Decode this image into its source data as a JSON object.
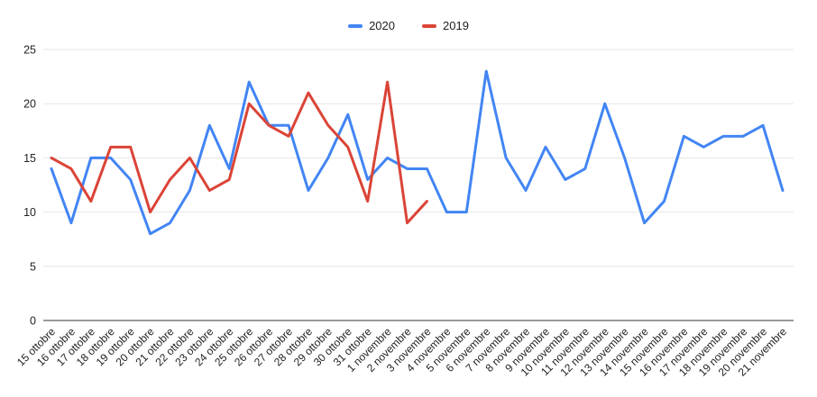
{
  "legend": {
    "items": [
      {
        "label": "2020",
        "color": "#4285f4"
      },
      {
        "label": "2019",
        "color": "#db4437"
      }
    ]
  },
  "chart_data": {
    "type": "line",
    "title": "",
    "xlabel": "",
    "ylabel": "",
    "ylim": [
      0,
      25
    ],
    "yticks": [
      0,
      5,
      10,
      15,
      20,
      25
    ],
    "grid": true,
    "legend_position": "top",
    "categories": [
      "15 ottobre",
      "16 ottobre",
      "17 ottobre",
      "18 ottobre",
      "19 ottobre",
      "20 ottobre",
      "21 ottobre",
      "22 ottobre",
      "23 ottobre",
      "24 ottobre",
      "25 ottobre",
      "26 ottobre",
      "27 ottobre",
      "28 ottobre",
      "29 ottobre",
      "30 ottobre",
      "31 ottobre",
      "1 novembre",
      "2 novembre",
      "3 novembre",
      "4 novembre",
      "5 novembre",
      "6 novembre",
      "7 novembre",
      "8 novembre",
      "9 novembre",
      "10 novembre",
      "11 novembre",
      "12 novembre",
      "13 novembre",
      "14 novembre",
      "15 novembre",
      "16 novembre",
      "17 novembre",
      "18 novembre",
      "19 novembre",
      "20 novembre",
      "21 novembre"
    ],
    "series": [
      {
        "name": "2020",
        "color": "#4285f4",
        "values": [
          14,
          9,
          15,
          15,
          13,
          8,
          9,
          12,
          18,
          14,
          22,
          18,
          18,
          12,
          15,
          19,
          13,
          15,
          14,
          14,
          10,
          10,
          23,
          15,
          12,
          16,
          13,
          14,
          20,
          15,
          9,
          11,
          17,
          16,
          17,
          17,
          18,
          12
        ]
      },
      {
        "name": "2019",
        "color": "#db4437",
        "values": [
          15,
          14,
          11,
          16,
          16,
          10,
          13,
          15,
          12,
          13,
          20,
          18,
          17,
          21,
          18,
          16,
          11,
          22,
          9,
          11,
          null,
          null,
          null,
          null,
          null,
          null,
          null,
          null,
          null,
          null,
          null,
          null,
          null,
          null,
          null,
          null,
          null,
          null
        ]
      }
    ]
  },
  "colors": {
    "background": "#ffffff",
    "gridline": "#e6e6e6",
    "baseline": "#333333",
    "axis_text": "#222222"
  }
}
